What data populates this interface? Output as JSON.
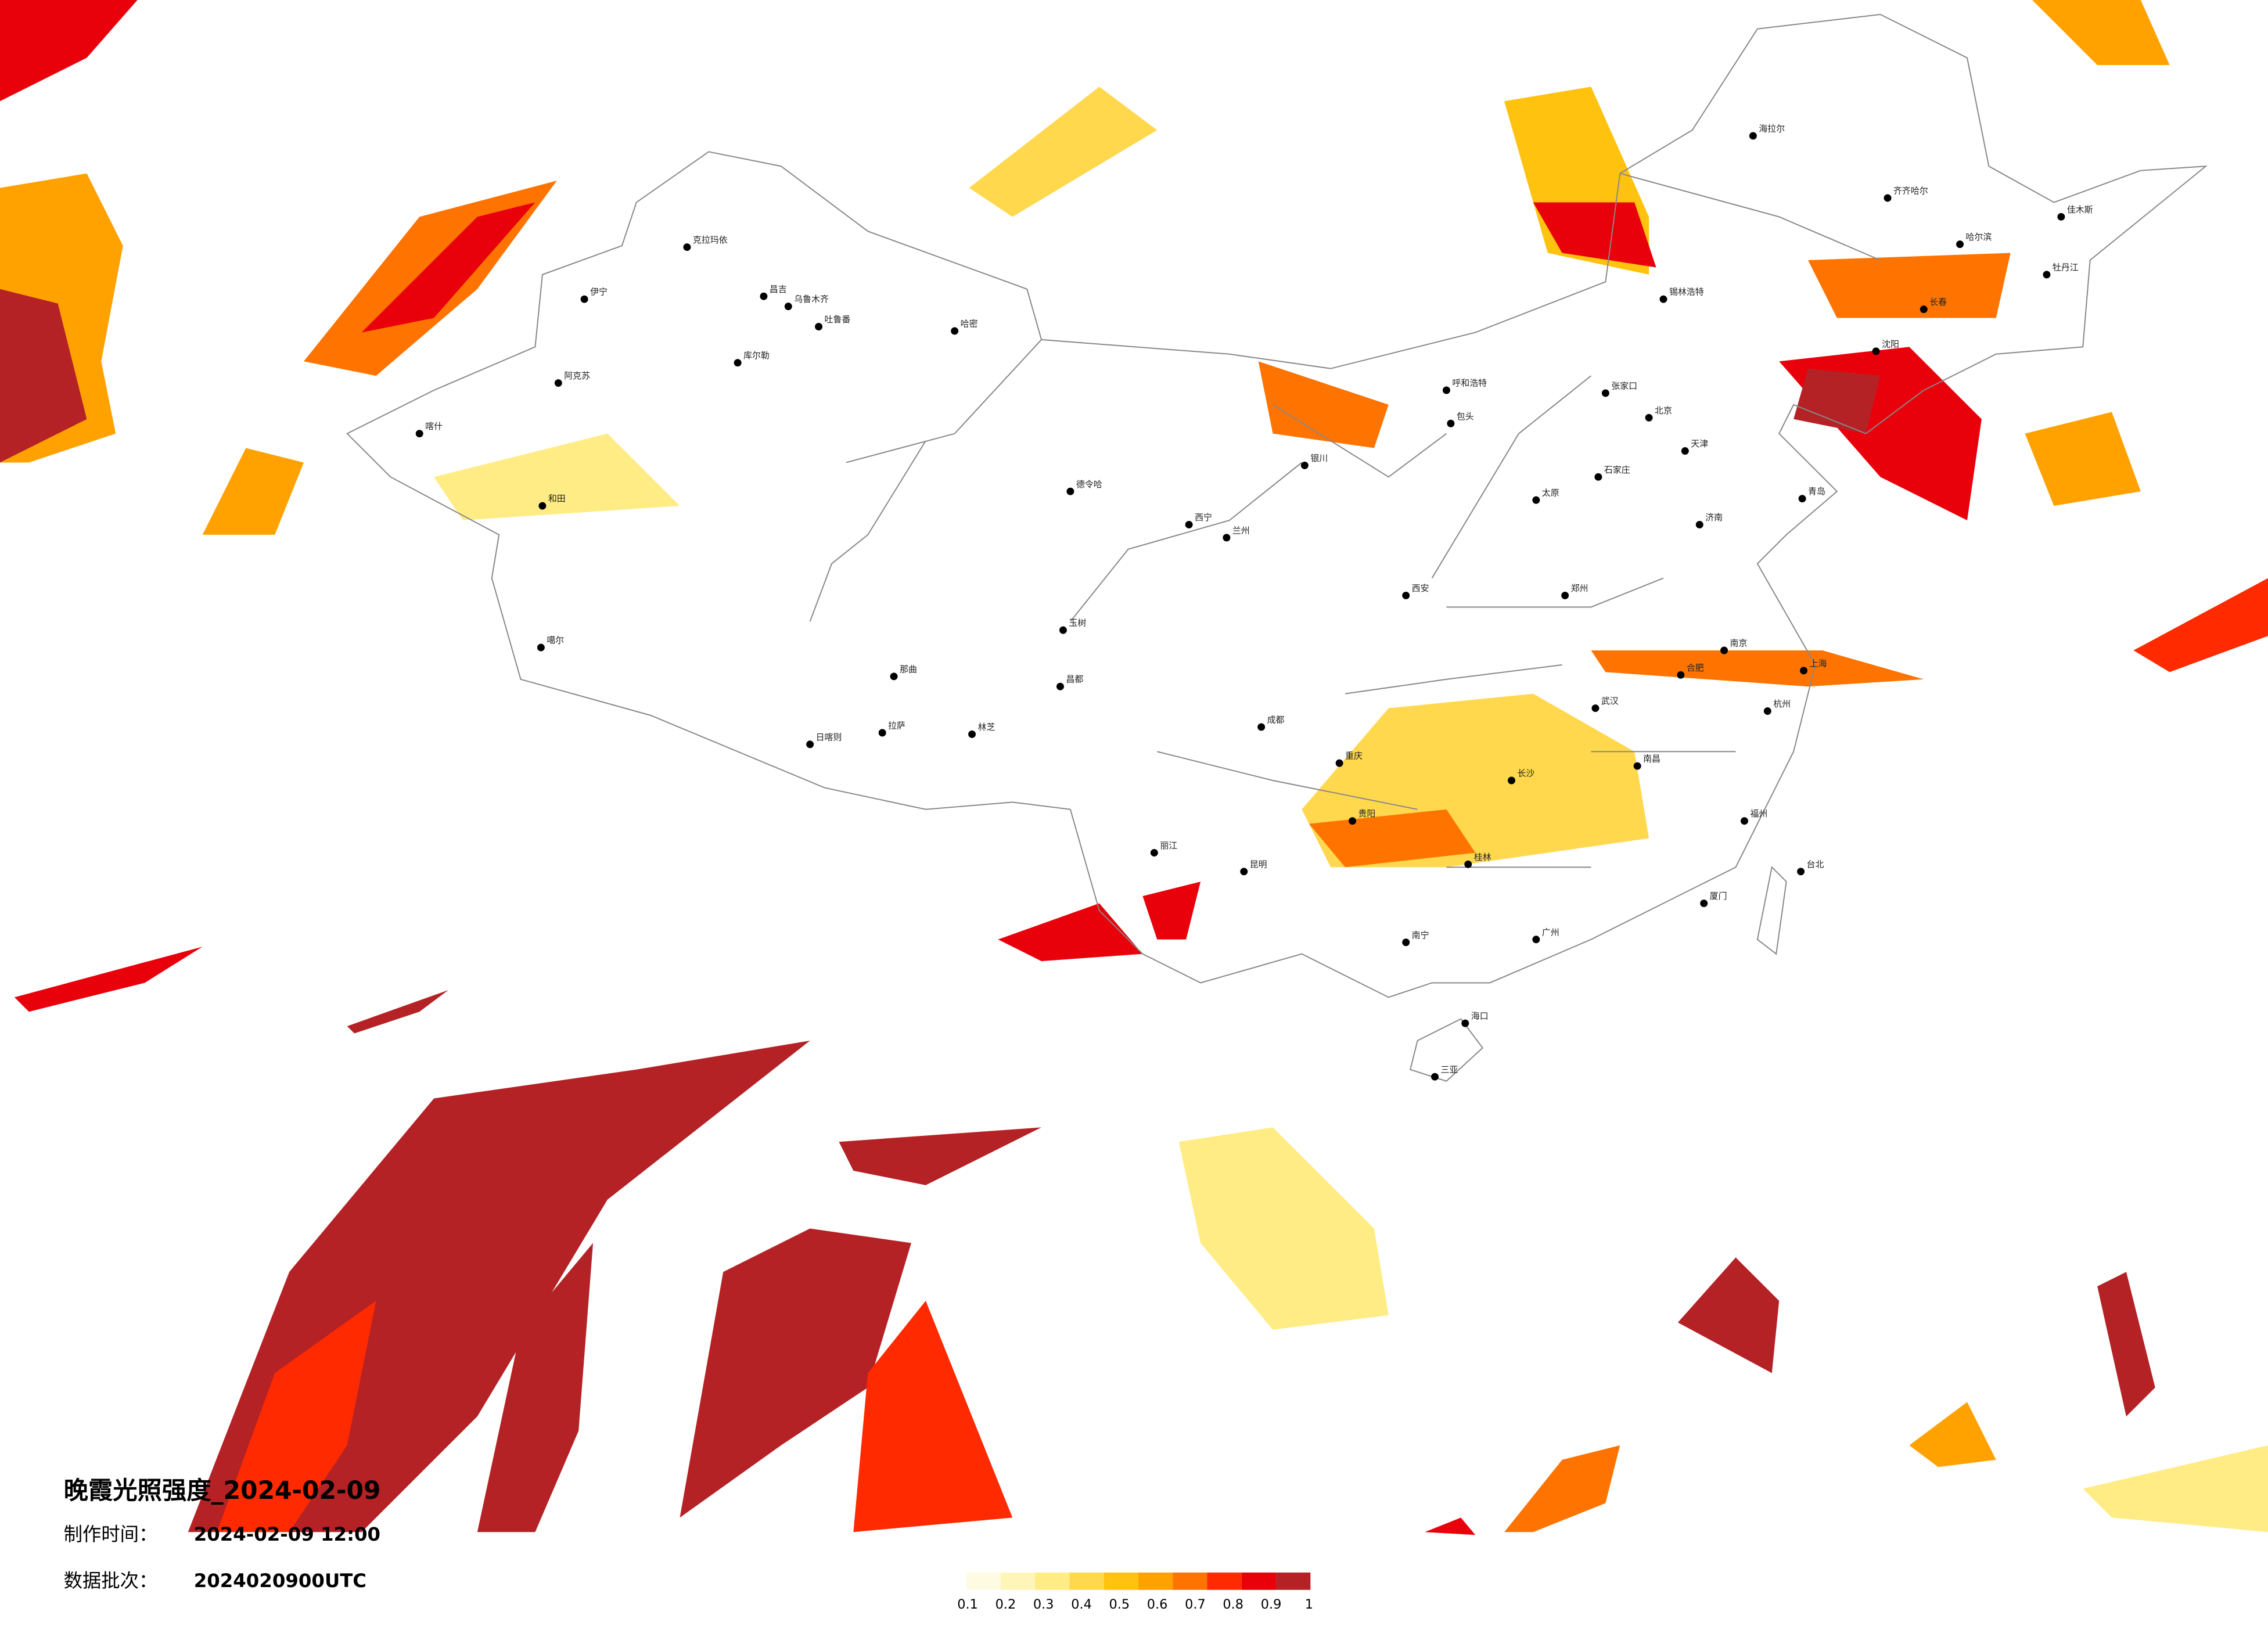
{
  "title": "晚霞光照强度_2024-02-09",
  "production_time": {
    "label": "制作时间：",
    "value": "2024-02-09 12:00"
  },
  "data_batch": {
    "label": "数据批次：",
    "value": "2024020900UTC"
  },
  "legend": {
    "colors": [
      "#fffbe3",
      "#fff5b8",
      "#ffec85",
      "#ffd84d",
      "#ffc20e",
      "#ffa200",
      "#ff7400",
      "#ff2a00",
      "#e8000b",
      "#b42226"
    ],
    "ticks": [
      0.1,
      0.2,
      0.3,
      0.4,
      0.5,
      0.6,
      0.7,
      0.8,
      0.9,
      1
    ]
  },
  "cities": [
    "克拉玛依",
    "伊宁",
    "昌吉",
    "乌鲁木齐",
    "吐鲁番",
    "哈密",
    "阿克苏",
    "喀什",
    "和田",
    "库尔勒",
    "噶尔",
    "日喀则",
    "拉萨",
    "那曲",
    "林芝",
    "昌都",
    "玉树",
    "呼和浩特",
    "包头",
    "北京",
    "天津",
    "石家庄",
    "太原",
    "济南",
    "郑州",
    "西安",
    "兰州",
    "西宁",
    "银川",
    "成都",
    "重庆",
    "贵阳",
    "昆明",
    "南宁",
    "广州",
    "长沙",
    "武汉",
    "南昌",
    "合肥",
    "南京",
    "杭州",
    "福州",
    "台北",
    "海口",
    "沈阳",
    "长春",
    "哈尔滨",
    "齐齐哈尔",
    "海拉尔",
    "锡林浩特",
    "青岛",
    "上海",
    "德令哈",
    "张家口",
    "丽江",
    "桂林",
    "厦门",
    "三亚",
    "牡丹江",
    "佳木斯"
  ]
}
